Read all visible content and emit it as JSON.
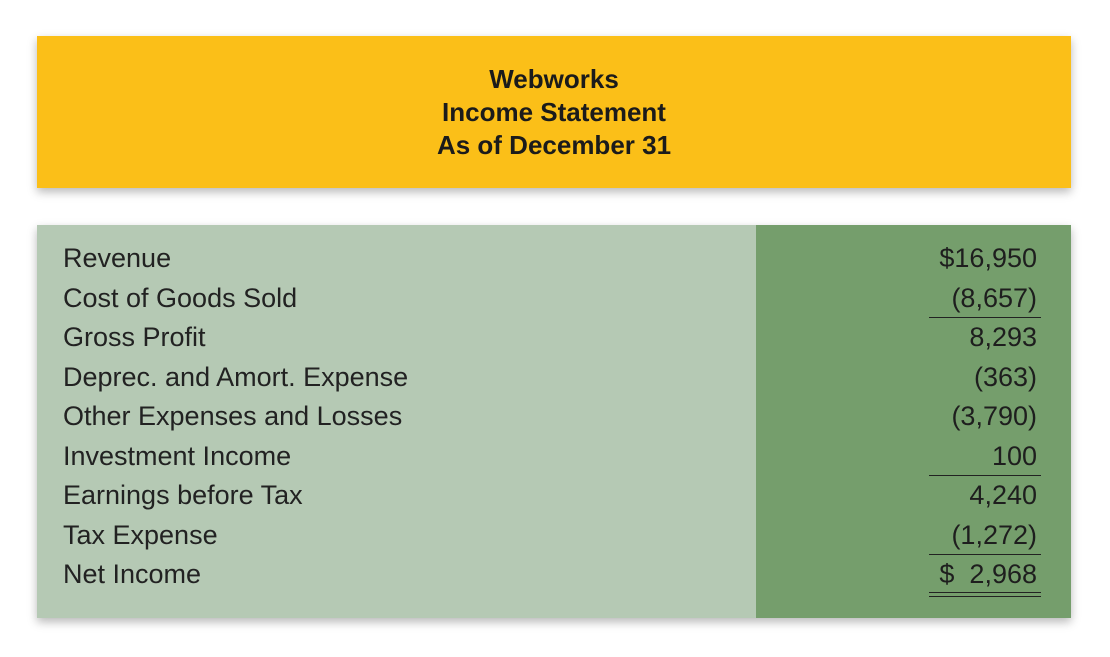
{
  "header": {
    "company": "Webworks",
    "statement": "Income Statement",
    "period": "As of December 31"
  },
  "statement": {
    "rows": [
      {
        "label": "Revenue",
        "value": "$16,950",
        "rule_below": "none"
      },
      {
        "label": "Cost of Goods Sold",
        "value": "(8,657)",
        "rule_below": "single"
      },
      {
        "label": "Gross Profit",
        "value": "8,293",
        "rule_below": "none"
      },
      {
        "label": "Deprec. and Amort. Expense",
        "value": "(363)",
        "rule_below": "none"
      },
      {
        "label": "Other Expenses and Losses",
        "value": "(3,790)",
        "rule_below": "none"
      },
      {
        "label": "Investment Income",
        "value": "100",
        "rule_below": "single"
      },
      {
        "label": "Earnings before Tax",
        "value": "4,240",
        "rule_below": "none"
      },
      {
        "label": "Tax Expense",
        "value": "(1,272)",
        "rule_below": "single"
      },
      {
        "label": "Net Income",
        "value": "$  2,968",
        "rule_below": "double"
      }
    ]
  },
  "colors": {
    "header_bg": "#fbbf18",
    "labels_bg": "#b5c9b4",
    "values_bg": "#759e6c",
    "text": "#222222"
  }
}
